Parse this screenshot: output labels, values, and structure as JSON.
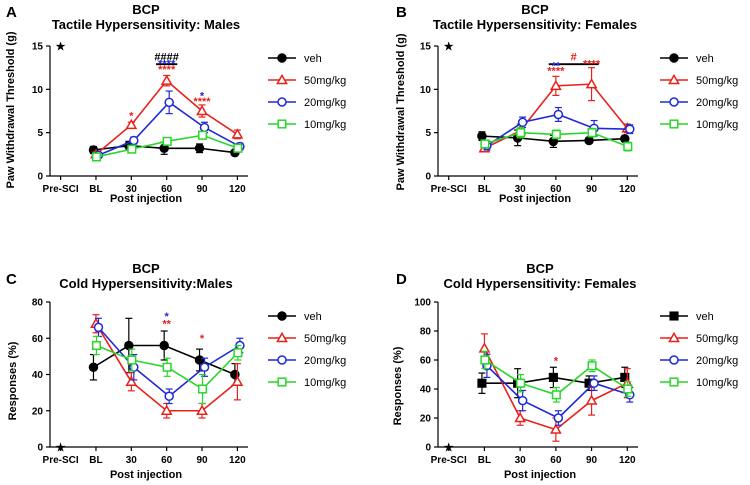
{
  "series_styles": [
    {
      "color": "#000000",
      "marker": "circle",
      "filled": true
    },
    {
      "color": "#e8201a",
      "marker": "triangle",
      "filled": false
    },
    {
      "color": "#1f2ad6",
      "marker": "circle",
      "filled": false
    },
    {
      "color": "#29d629",
      "marker": "square",
      "filled": false
    }
  ],
  "chart_data": [
    {
      "type": "line",
      "panel": "A",
      "title": "BCP",
      "subtitle": "Tactile Hypersensitivity: Males",
      "xlabel": "Post injection",
      "ylabel": "Paw Withdrawal Threshold (g)",
      "categories": [
        "Pre-SCI",
        "BL",
        "30",
        "60",
        "90",
        "120"
      ],
      "ylim": [
        0,
        15
      ],
      "yticks": [
        0,
        5,
        10,
        15
      ],
      "legend_position": "right",
      "presci_marker": "★",
      "series": [
        {
          "name": "veh",
          "values": [
            null,
            3.0,
            3.5,
            3.2,
            3.2,
            2.7
          ],
          "errors": [
            null,
            0.4,
            0.5,
            0.7,
            0.5,
            0.2
          ]
        },
        {
          "name": "50mg/kg",
          "values": [
            null,
            2.5,
            5.9,
            11.0,
            7.5,
            4.8
          ],
          "errors": [
            null,
            0.3,
            0.3,
            0.6,
            0.7,
            0.5
          ]
        },
        {
          "name": "20mg/kg",
          "values": [
            null,
            2.4,
            4.1,
            8.5,
            5.6,
            3.4
          ],
          "errors": [
            null,
            0.3,
            0.4,
            1.3,
            0.6,
            0.4
          ]
        },
        {
          "name": "10mg/kg",
          "values": [
            null,
            2.2,
            3.1,
            4.0,
            4.7,
            3.2
          ],
          "errors": [
            null,
            0.2,
            0.3,
            0.3,
            0.4,
            0.3
          ]
        }
      ],
      "annotations": [
        {
          "text": "####",
          "x": 3,
          "y": 13.3,
          "color": "#000000"
        },
        {
          "text": "****",
          "x": 3,
          "y": 12.5,
          "color": "#1f2ad6"
        },
        {
          "text": "****",
          "x": 3,
          "y": 11.9,
          "color": "#e8201a"
        },
        {
          "text": "*",
          "x": 2,
          "y": 6.5,
          "color": "#e8201a"
        },
        {
          "text": "*",
          "x": 4,
          "y": 8.8,
          "color": "#1f2ad6"
        },
        {
          "text": "****",
          "x": 4,
          "y": 8.2,
          "color": "#e8201a"
        }
      ],
      "sigbars": [
        {
          "x0": 2.7,
          "x1": 3.3,
          "y": 12.9,
          "color": "#000000"
        }
      ]
    },
    {
      "type": "line",
      "panel": "B",
      "title": "BCP",
      "subtitle": "Tactile Hypersensitivity: Females",
      "xlabel": "Post injection",
      "ylabel": "Paw Withdrawal Threshold (g)",
      "categories": [
        "Pre-SCI",
        "BL",
        "30",
        "60",
        "90",
        "120"
      ],
      "ylim": [
        0,
        15
      ],
      "yticks": [
        0,
        5,
        10,
        15
      ],
      "legend_position": "right",
      "presci_marker": "★",
      "series": [
        {
          "name": "veh",
          "values": [
            null,
            4.6,
            4.4,
            4.0,
            4.1,
            4.3
          ],
          "errors": [
            null,
            0.5,
            0.9,
            0.7,
            0.3,
            0.3
          ]
        },
        {
          "name": "50mg/kg",
          "values": [
            null,
            3.2,
            5.2,
            10.4,
            10.6,
            5.5
          ],
          "errors": [
            null,
            0.3,
            0.8,
            1.1,
            1.9,
            0.5
          ]
        },
        {
          "name": "20mg/kg",
          "values": [
            null,
            3.5,
            6.2,
            7.1,
            5.5,
            5.4
          ],
          "errors": [
            null,
            0.5,
            0.6,
            0.8,
            0.9,
            0.5
          ]
        },
        {
          "name": "10mg/kg",
          "values": [
            null,
            3.7,
            5.0,
            4.8,
            5.0,
            3.4
          ],
          "errors": [
            null,
            0.4,
            0.6,
            0.5,
            0.5,
            0.5
          ]
        }
      ],
      "annotations": [
        {
          "text": "#",
          "x": 3.5,
          "y": 13.3,
          "color": "#e8201a"
        },
        {
          "text": "**",
          "x": 3,
          "y": 12.3,
          "color": "#1f2ad6"
        },
        {
          "text": "****",
          "x": 3,
          "y": 11.7,
          "color": "#e8201a"
        },
        {
          "text": "****",
          "x": 4,
          "y": 12.5,
          "color": "#e8201a"
        }
      ],
      "sigbars": [
        {
          "x0": 2.8,
          "x1": 4.2,
          "y": 12.9,
          "color": "#000000"
        }
      ]
    },
    {
      "type": "line",
      "panel": "C",
      "title": "BCP",
      "subtitle": "Cold Hypersensitivity:Males",
      "xlabel": "Post injection",
      "ylabel": "Responses (%)",
      "categories": [
        "Pre-SCI",
        "BL",
        "30",
        "60",
        "90",
        "120"
      ],
      "ylim": [
        0,
        80
      ],
      "yticks": [
        0,
        20,
        40,
        60,
        80
      ],
      "legend_position": "right",
      "presci_marker": "★",
      "series": [
        {
          "name": "veh",
          "values": [
            null,
            44,
            56,
            56,
            48,
            40
          ],
          "errors": [
            null,
            7,
            15,
            8,
            6,
            6
          ]
        },
        {
          "name": "50mg/kg",
          "values": [
            null,
            68,
            36,
            20,
            20,
            36
          ],
          "errors": [
            null,
            5,
            5,
            4,
            4,
            10
          ]
        },
        {
          "name": "20mg/kg",
          "values": [
            null,
            66,
            44,
            28,
            44,
            56
          ],
          "errors": [
            null,
            5,
            7,
            4,
            5,
            4
          ]
        },
        {
          "name": "10mg/kg",
          "values": [
            null,
            56,
            48,
            44,
            32,
            52
          ],
          "errors": [
            null,
            5,
            6,
            5,
            8,
            4
          ]
        }
      ],
      "annotations": [
        {
          "text": "*",
          "x": 3,
          "y": 70,
          "color": "#1f2ad6"
        },
        {
          "text": "**",
          "x": 3,
          "y": 66,
          "color": "#e8201a"
        },
        {
          "text": "*",
          "x": 4,
          "y": 58,
          "color": "#e8201a"
        }
      ],
      "sigbars": []
    },
    {
      "type": "line",
      "panel": "D",
      "title": "BCP",
      "subtitle": "Cold Hypersensitivity: Females",
      "xlabel": "Post injection",
      "ylabel": "Responses (%)",
      "categories": [
        "Pre-SCI",
        "BL",
        "30",
        "60",
        "90",
        "120"
      ],
      "ylim": [
        0,
        100
      ],
      "yticks": [
        0,
        20,
        40,
        60,
        80,
        100
      ],
      "legend_position": "right",
      "presci_marker": "★",
      "series": [
        {
          "name": "veh",
          "values": [
            null,
            44,
            44,
            48,
            44,
            48
          ],
          "errors": [
            null,
            7,
            10,
            7,
            5,
            7
          ],
          "marker": "square"
        },
        {
          "name": "50mg/kg",
          "values": [
            null,
            68,
            20,
            12,
            32,
            44
          ],
          "errors": [
            null,
            10,
            5,
            8,
            10,
            10
          ]
        },
        {
          "name": "20mg/kg",
          "values": [
            null,
            56,
            32,
            20,
            44,
            36
          ],
          "errors": [
            null,
            8,
            7,
            5,
            5,
            5
          ]
        },
        {
          "name": "10mg/kg",
          "values": [
            null,
            60,
            44,
            36,
            56,
            40
          ],
          "errors": [
            null,
            6,
            6,
            5,
            4,
            5
          ]
        }
      ],
      "annotations": [
        {
          "text": "*",
          "x": 3,
          "y": 57,
          "color": "#e8201a"
        }
      ],
      "sigbars": []
    }
  ]
}
